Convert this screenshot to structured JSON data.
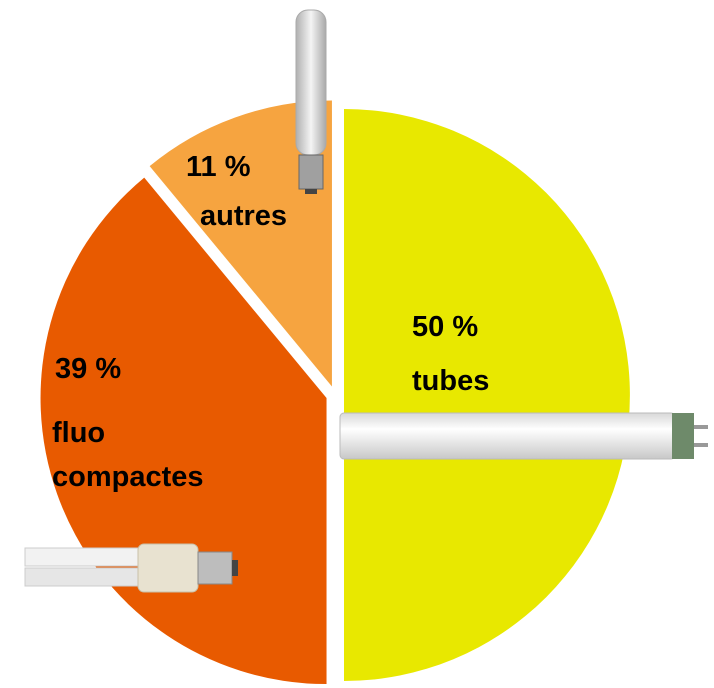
{
  "chart_data": {
    "type": "pie",
    "categories": [
      "tubes",
      "fluo compactes",
      "autres"
    ],
    "values": [
      50,
      39,
      11
    ],
    "value_labels": [
      "50 %",
      "39 %",
      "11 %"
    ],
    "colors": [
      "#e8e800",
      "#e85a00",
      "#f6a440"
    ]
  }
}
